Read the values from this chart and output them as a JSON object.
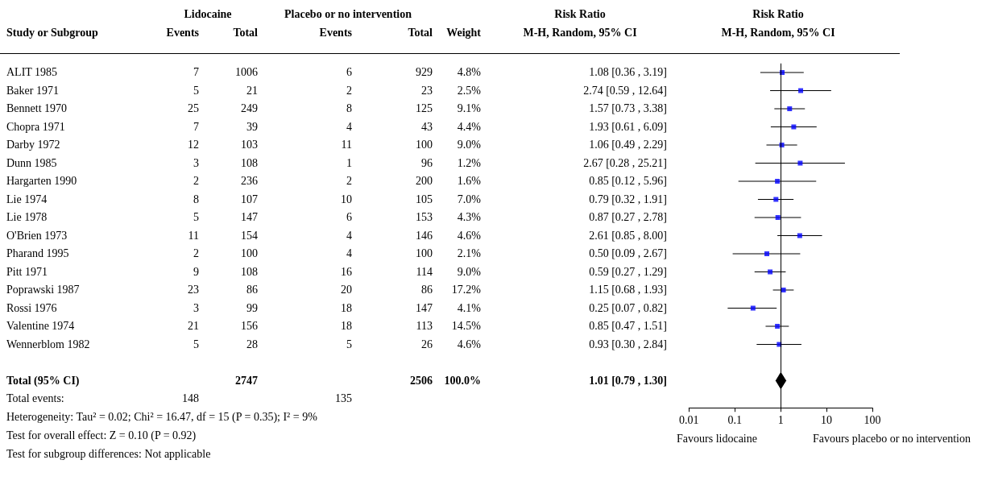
{
  "chart_data": [
    {
      "type": "other",
      "data_labels": true,
      "ylabel": "Study or Subgroup",
      "categories": [
        "ALIT 1985",
        "Baker 1971",
        "Bennett 1970",
        "Chopra 1971",
        "Darby 1972",
        "Dunn 1985",
        "Hargarten 1990",
        "Lie 1974",
        "Lie 1978",
        "O'Brien 1973",
        "Pharand 1995",
        "Pitt 1971",
        "Poprawski 1987",
        "Rossi 1976",
        "Valentine 1974",
        "Wennerblom 1982",
        null,
        "Total (95% CI)",
        null
      ],
      "annotations": [
        "Lidocaine",
        "Placebo or no intervention",
        "M-H, Random, 95% CI",
        "Total events:",
        "148",
        "135",
        "Heterogeneity: Tau² = 0.02; Chi² = 16.47, df = 15 (P = 0.35); I² = 9%",
        "Test for overall effect: Z = 0.10 (P = 0.92)",
        "Test for subgroup differences: Not applicable"
      ],
      "series": [
        {
          "name": "Events",
          "values": [
            7,
            5,
            25,
            7,
            12,
            3,
            2,
            8,
            5,
            11,
            2,
            9,
            23,
            3,
            21,
            5,
            null,
            null,
            null
          ]
        },
        {
          "name": "Total",
          "values": [
            1006,
            21,
            249,
            39,
            103,
            108,
            236,
            107,
            147,
            154,
            100,
            108,
            86,
            99,
            156,
            28,
            null,
            2747,
            null
          ]
        },
        {
          "name": "Events",
          "values": [
            6,
            2,
            8,
            4,
            11,
            1,
            2,
            10,
            6,
            4,
            4,
            16,
            20,
            18,
            18,
            5,
            null,
            null,
            null
          ]
        },
        {
          "name": "Total",
          "values": [
            929,
            23,
            125,
            43,
            100,
            96,
            200,
            105,
            153,
            146,
            100,
            114,
            86,
            147,
            113,
            26,
            null,
            2506,
            null
          ]
        },
        {
          "name": "Weight",
          "values": [
            4.8,
            2.5,
            9.1,
            4.4,
            9.0,
            1.2,
            1.6,
            7.0,
            4.3,
            4.6,
            2.1,
            9.0,
            17.2,
            4.1,
            14.5,
            4.6,
            null,
            100.0,
            null
          ],
          "value_labels": [
            "4.8%",
            "2.5%",
            "9.1%",
            "4.4%",
            "9.0%",
            "1.2%",
            "1.6%",
            "7.0%",
            "4.3%",
            "4.6%",
            "2.1%",
            "9.0%",
            "17.2%",
            "4.1%",
            "14.5%",
            "4.6%",
            null,
            "100.0%",
            null
          ]
        },
        {
          "name": "Risk Ratio",
          "values": [
            1.08,
            2.74,
            1.57,
            1.93,
            1.06,
            2.67,
            0.85,
            0.79,
            0.87,
            2.61,
            0.5,
            0.59,
            1.15,
            0.25,
            0.85,
            0.93,
            null,
            1.01,
            null
          ],
          "value_labels": [
            "1.08 [0.36 , 3.19]",
            "2.74 [0.59 , 12.64]",
            "1.57 [0.73 , 3.38]",
            "1.93 [0.61 , 6.09]",
            "1.06 [0.49 , 2.29]",
            "2.67 [0.28 , 25.21]",
            "0.85 [0.12 , 5.96]",
            "0.79 [0.32 , 1.91]",
            "0.87 [0.27 , 2.78]",
            "2.61 [0.85 , 8.00]",
            "0.50 [0.09 , 2.67]",
            "0.59 [0.27 , 1.29]",
            "1.15 [0.68 , 1.93]",
            "0.25 [0.07 , 0.82]",
            "0.85 [0.47 , 1.51]",
            "0.93 [0.30 , 2.84]",
            null,
            "1.01 [0.79 , 1.30]",
            null
          ]
        }
      ]
    },
    {
      "type": "scatter",
      "orientation": "horizontal",
      "log": "x",
      "marker": "square",
      "tick_labels": "x",
      "title": "Risk Ratio",
      "subtitle": "M-H, Random, 95% CI",
      "categories": [
        null,
        null,
        null,
        null,
        null,
        null,
        null,
        null,
        null,
        null,
        null,
        null,
        null,
        null,
        null,
        null,
        null,
        null,
        null
      ],
      "xlim": [
        0.01,
        100
      ],
      "xticks": [
        0.01,
        0.1,
        1,
        10,
        100
      ],
      "ref_lines": [
        {
          "axis": "x",
          "value": 1
        }
      ],
      "annotations": [
        "Favours lidocaine",
        "Favours placebo or no intervention"
      ],
      "series": [
        {
          "color": "#0000ff",
          "values": [
            1.08,
            2.74,
            1.57,
            1.93,
            1.06,
            2.67,
            0.85,
            0.79,
            0.87,
            2.61,
            0.5,
            0.59,
            1.15,
            0.25,
            0.85,
            0.93,
            null,
            null,
            null
          ],
          "errors": [
            [
              0.36,
              3.19
            ],
            [
              0.59,
              12.64
            ],
            [
              0.73,
              3.38
            ],
            [
              0.61,
              6.09
            ],
            [
              0.49,
              2.29
            ],
            [
              0.28,
              25.21
            ],
            [
              0.12,
              5.96
            ],
            [
              0.32,
              1.91
            ],
            [
              0.27,
              2.78
            ],
            [
              0.85,
              8.0
            ],
            [
              0.09,
              2.67
            ],
            [
              0.27,
              1.29
            ],
            [
              0.68,
              1.93
            ],
            [
              0.07,
              0.82
            ],
            [
              0.47,
              1.51
            ],
            [
              0.3,
              2.84
            ],
            null,
            null,
            null
          ]
        },
        {
          "marker": "diamond",
          "color": "#000000",
          "values": [
            null,
            null,
            null,
            null,
            null,
            null,
            null,
            null,
            null,
            null,
            null,
            null,
            null,
            null,
            null,
            null,
            null,
            1.01,
            null
          ],
          "errors": [
            null,
            null,
            null,
            null,
            null,
            null,
            null,
            null,
            null,
            null,
            null,
            null,
            null,
            null,
            null,
            null,
            null,
            [
              0.79,
              1.3
            ],
            null
          ]
        }
      ]
    }
  ]
}
